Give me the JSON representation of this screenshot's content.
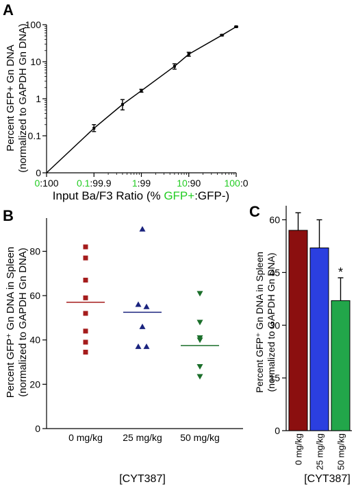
{
  "chart_data": [
    {
      "panel": "A",
      "type": "line",
      "yscale": "log",
      "ylabel_lines": [
        "Percent GFP+ Gn DNA",
        "(normalized to GAPDH Gn DNA)"
      ],
      "xlabel_parts": [
        {
          "text": "Input Ba/F3 Ratio (% ",
          "color": "#000000"
        },
        {
          "text": "GFP+",
          "color": "#22cc22"
        },
        {
          "text": ":GFP-)",
          "color": "#000000"
        }
      ],
      "xticks": [
        {
          "pos": 0,
          "green": "0",
          "black": ":100"
        },
        {
          "pos": 0.1,
          "green": "0.1",
          "black": ":99.9"
        },
        {
          "pos": 1,
          "green": "1",
          "black": ":99"
        },
        {
          "pos": 10,
          "green": "10",
          "black": ":90"
        },
        {
          "pos": 100,
          "green": "100",
          "black": ":0"
        }
      ],
      "yticks": [
        "0",
        "0.1",
        "1",
        "10",
        "100"
      ],
      "points": [
        {
          "x": 0.1,
          "y": 0.16,
          "err_lo": 0.13,
          "err_hi": 0.2
        },
        {
          "x": 0.4,
          "y": 0.7,
          "err_lo": 0.5,
          "err_hi": 0.95
        },
        {
          "x": 1,
          "y": 1.65,
          "err_lo": 1.5,
          "err_hi": 1.8
        },
        {
          "x": 5,
          "y": 7.5,
          "err_lo": 6.3,
          "err_hi": 8.8
        },
        {
          "x": 10,
          "y": 16,
          "err_lo": 14,
          "err_hi": 18
        },
        {
          "x": 50,
          "y": 52,
          "err_lo": 50,
          "err_hi": 54
        },
        {
          "x": 100,
          "y": 88,
          "err_lo": 85,
          "err_hi": 91
        }
      ],
      "origin": {
        "x": 0,
        "y": 0
      }
    },
    {
      "panel": "B",
      "type": "scatter",
      "ylabel_lines": [
        "Percent GFP⁺ Gn DNA in Spleen",
        "(normalized to GAPDH Gn DNA)"
      ],
      "xlabel": "[CYT387]",
      "ylim": [
        0,
        95
      ],
      "yticks": [
        "0",
        "20",
        "40",
        "60",
        "80"
      ],
      "groups": [
        {
          "label": "0 mg/kg",
          "color": "#a51c1c",
          "marker": "square",
          "values": [
            82,
            77,
            67,
            59,
            52,
            44,
            39,
            34.5
          ],
          "mean": 57
        },
        {
          "label": "25 mg/kg",
          "color": "#1a237e",
          "marker": "triangle-up",
          "values": [
            90,
            56,
            55,
            46,
            37,
            37
          ],
          "mean": 52.5
        },
        {
          "label": "50 mg/kg",
          "color": "#1a6e2a",
          "marker": "triangle-down",
          "values": [
            61,
            48,
            41,
            40,
            28,
            23.5
          ],
          "mean": 37.5
        }
      ]
    },
    {
      "panel": "C",
      "type": "bar",
      "ylabel_lines": [
        "Percent GFP⁺ Gn DNA in Spleen",
        "(normalized to GAPDH Gn DNA)"
      ],
      "xlabel": "[CYT387]",
      "ylim": [
        0,
        64
      ],
      "yticks": [
        "0",
        "15",
        "30",
        "45",
        "60"
      ],
      "categories": [
        "0 mg/kg",
        "25 mg/kg",
        "50 mg/kg"
      ],
      "values": [
        57,
        52,
        37
      ],
      "errors": [
        5,
        8,
        6.5
      ],
      "colors": [
        "#8b0f0f",
        "#2b3fe0",
        "#22a64a"
      ],
      "annotations": [
        {
          "category": "50 mg/kg",
          "text": "*"
        }
      ]
    }
  ]
}
